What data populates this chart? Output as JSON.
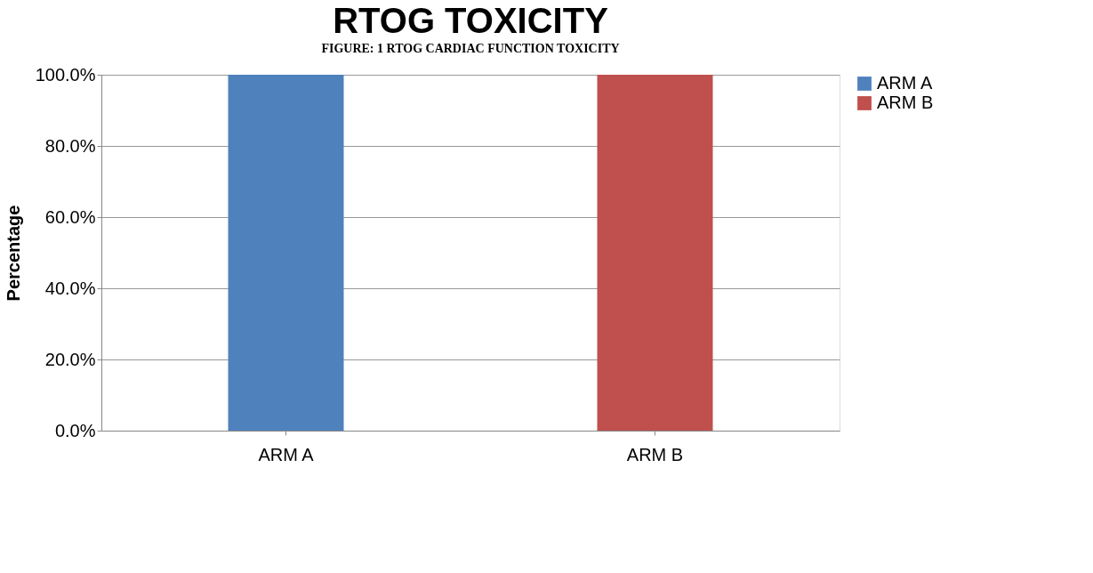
{
  "chart_data": {
    "type": "bar",
    "title": "RTOG TOXICITY",
    "ylabel": "Percentage",
    "annotations": [
      "FIGURE: 1 RTOG CARDIAC FUNCTION TOXICITY"
    ],
    "categories": [
      "ARM A",
      "ARM B"
    ],
    "series": [
      {
        "name": "ARM A",
        "color": "#4f81bd",
        "values": [
          100,
          null
        ]
      },
      {
        "name": "ARM B",
        "color": "#c0504d",
        "values": [
          null,
          100
        ]
      }
    ],
    "ylim": [
      0,
      100
    ],
    "yticks": [
      {
        "value": 0,
        "label": "0.0%"
      },
      {
        "value": 20,
        "label": "20.0%"
      },
      {
        "value": 40,
        "label": "40.0%"
      },
      {
        "value": 60,
        "label": "60.0%"
      },
      {
        "value": 80,
        "label": "80.0%"
      },
      {
        "value": 100,
        "label": "100.0%"
      }
    ],
    "grid": "y",
    "legend": "right"
  }
}
